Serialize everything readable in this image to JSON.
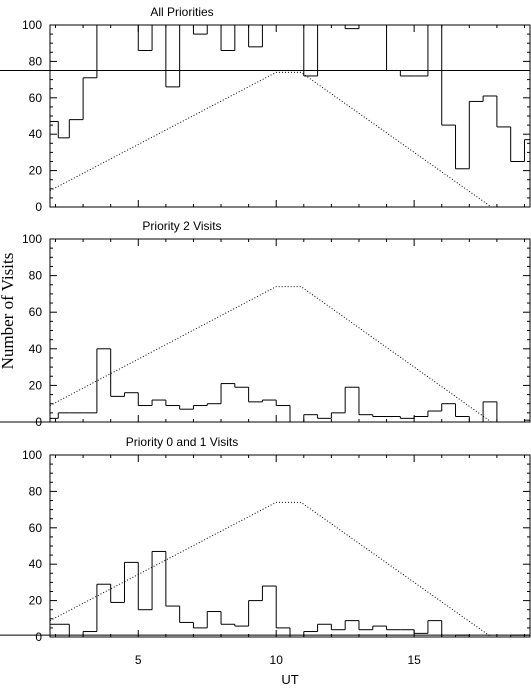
{
  "figure": {
    "ylabel": "Number of Visits",
    "xlabel": "UT"
  },
  "chart_data": [
    {
      "type": "line",
      "title": "All Priorities",
      "xlabel": "UT",
      "ylabel": "Number of Visits",
      "xlim": [
        1.8,
        19.2
      ],
      "ylim": [
        0,
        100
      ],
      "xticks": [
        5,
        10,
        15
      ],
      "yticks": [
        0,
        20,
        40,
        60,
        80,
        100
      ],
      "grid": false,
      "histogram": {
        "bin_edges": [
          1.8,
          2.1,
          2.5,
          3.0,
          3.5,
          4.0,
          4.5,
          5.0,
          5.5,
          6.0,
          6.5,
          7.0,
          7.5,
          8.0,
          8.5,
          9.0,
          9.5,
          10.0,
          10.5,
          11.0,
          11.5,
          12.0,
          12.5,
          13.0,
          13.5,
          14.0,
          14.5,
          15.0,
          15.5,
          16.0,
          16.5,
          17.0,
          17.5,
          18.0,
          18.5,
          19.0,
          19.2
        ],
        "values": [
          47,
          38,
          48,
          71,
          100,
          100,
          100,
          86,
          100,
          66,
          100,
          95,
          100,
          86,
          100,
          88,
          100,
          100,
          100,
          72,
          100,
          100,
          98,
          100,
          100,
          75,
          72,
          72,
          100,
          45,
          21,
          58,
          61,
          44,
          25,
          37,
          75
        ]
      },
      "envelope": {
        "x": [
          1.8,
          10.0,
          10.9,
          17.8
        ],
        "y": [
          9,
          74,
          74,
          0
        ]
      }
    },
    {
      "type": "line",
      "title": "Priority 2 Visits",
      "xlabel": "UT",
      "ylabel": "Number of Visits",
      "xlim": [
        1.8,
        19.2
      ],
      "ylim": [
        0,
        100
      ],
      "xticks": [
        5,
        10,
        15
      ],
      "yticks": [
        0,
        20,
        40,
        60,
        80,
        100
      ],
      "grid": false,
      "histogram": {
        "bin_edges": [
          1.8,
          2.1,
          2.5,
          3.0,
          3.5,
          4.0,
          4.5,
          5.0,
          5.5,
          6.0,
          6.5,
          7.0,
          7.5,
          8.0,
          8.5,
          9.0,
          9.5,
          10.0,
          10.5,
          11.0,
          11.5,
          12.0,
          12.5,
          13.0,
          13.5,
          14.0,
          14.5,
          15.0,
          15.5,
          16.0,
          16.5,
          17.0,
          17.5,
          18.0,
          18.5,
          19.0,
          19.2
        ],
        "values": [
          2,
          5,
          5,
          5,
          40,
          14,
          16,
          9,
          12,
          9,
          7,
          9,
          10,
          21,
          19,
          11,
          12,
          9,
          0,
          4,
          2,
          5,
          19,
          4,
          3,
          3,
          2,
          3,
          6,
          10,
          3,
          0,
          11,
          0,
          0,
          1,
          0
        ]
      },
      "envelope": {
        "x": [
          1.8,
          10.0,
          10.9,
          17.8
        ],
        "y": [
          9,
          74,
          74,
          0
        ]
      }
    },
    {
      "type": "line",
      "title": "Priority 0 and 1 Visits",
      "xlabel": "UT",
      "ylabel": "Number of Visits",
      "xlim": [
        1.8,
        19.2
      ],
      "ylim": [
        0,
        100
      ],
      "xticks": [
        5,
        10,
        15
      ],
      "yticks": [
        0,
        20,
        40,
        60,
        80,
        100
      ],
      "grid": false,
      "histogram": {
        "bin_edges": [
          1.8,
          2.1,
          2.5,
          3.0,
          3.5,
          4.0,
          4.5,
          5.0,
          5.5,
          6.0,
          6.5,
          7.0,
          7.5,
          8.0,
          8.5,
          9.0,
          9.5,
          10.0,
          10.5,
          11.0,
          11.5,
          12.0,
          12.5,
          13.0,
          13.5,
          14.0,
          14.5,
          15.0,
          15.5,
          16.0,
          16.5,
          17.0,
          17.5,
          18.0,
          18.5,
          19.0,
          19.2
        ],
        "values": [
          7,
          7,
          0,
          3,
          29,
          19,
          41,
          15,
          47,
          17,
          8,
          5,
          14,
          7,
          6,
          20,
          28,
          5,
          0,
          3,
          7,
          4,
          9,
          4,
          6,
          4,
          4,
          2,
          9,
          0,
          1,
          0,
          0,
          0,
          1,
          1,
          1
        ]
      },
      "envelope": {
        "x": [
          1.8,
          10.0,
          10.9,
          17.8
        ],
        "y": [
          9,
          74,
          74,
          0
        ]
      }
    }
  ]
}
